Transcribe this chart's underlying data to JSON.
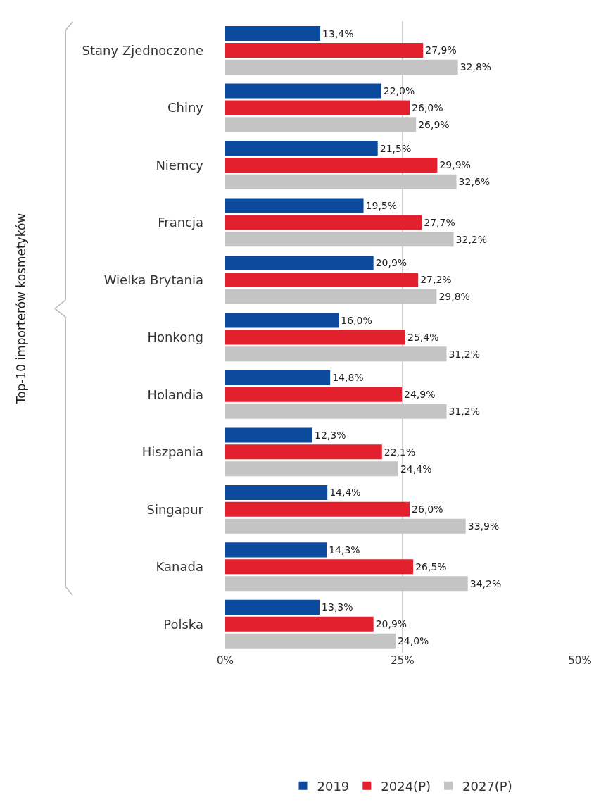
{
  "chart_data": {
    "type": "bar",
    "orientation": "horizontal",
    "annotations": [
      "Top-10 importerów kosmetyków"
    ],
    "categories": [
      "Stany Zjednoczone",
      "Chiny",
      "Niemcy",
      "Francja",
      "Wielka Brytania",
      "Honkong",
      "Holandia",
      "Hiszpania",
      "Singapur",
      "Kanada",
      "Polska"
    ],
    "series": [
      {
        "name": "2019",
        "color": "#0b4a9c",
        "values": [
          13.4,
          22.0,
          21.5,
          19.5,
          20.9,
          16.0,
          14.8,
          12.3,
          14.4,
          14.3,
          13.3
        ],
        "value_labels": [
          "13,4%",
          "22,0%",
          "21,5%",
          "19,5%",
          "20,9%",
          "16,0%",
          "14,8%",
          "12,3%",
          "14,4%",
          "14,3%",
          "13,3%"
        ]
      },
      {
        "name": "2024(P)",
        "color": "#e3202e",
        "values": [
          27.9,
          26.0,
          29.9,
          27.7,
          27.2,
          25.4,
          24.9,
          22.1,
          26.0,
          26.5,
          20.9
        ],
        "value_labels": [
          "27,9%",
          "26,0%",
          "29,9%",
          "27,7%",
          "27,2%",
          "25,4%",
          "24,9%",
          "22,1%",
          "26,0%",
          "26,5%",
          "20,9%"
        ]
      },
      {
        "name": "2027(P)",
        "color": "#c4c4c4",
        "values": [
          32.8,
          26.9,
          32.6,
          32.2,
          29.8,
          31.2,
          31.2,
          24.4,
          33.9,
          34.2,
          24.0
        ],
        "value_labels": [
          "32,8%",
          "26,9%",
          "32,6%",
          "32,2%",
          "29,8%",
          "31,2%",
          "31,2%",
          "24,4%",
          "33,9%",
          "34,2%",
          "24,0%"
        ]
      }
    ],
    "xlim": [
      0,
      50
    ],
    "xticks": [
      {
        "value": 0,
        "label": "0%"
      },
      {
        "value": 25,
        "label": "25%"
      },
      {
        "value": 50,
        "label": "50%"
      }
    ],
    "grid": "x",
    "legend": "bottom"
  }
}
